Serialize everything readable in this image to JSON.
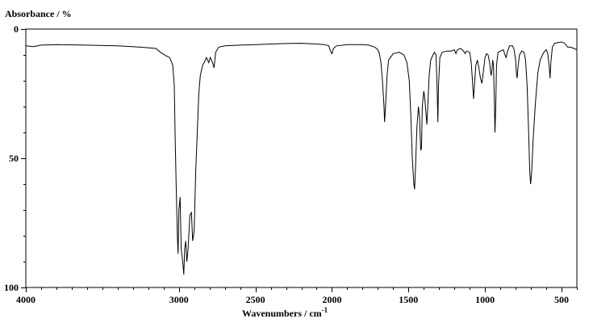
{
  "chart_data": {
    "type": "line",
    "title": "",
    "ylabel": "Absorbance / %",
    "xlabel": "Wavenumbers / cm",
    "xlabel_sup": "-1",
    "xlim": [
      4000,
      400
    ],
    "ylim": [
      0,
      100
    ],
    "y_inverted": true,
    "grid": false,
    "legend": "none",
    "x_tick_labels": [
      {
        "value": 4000,
        "label": "4000"
      },
      {
        "value": 3000,
        "label": "3000"
      },
      {
        "value": 2500,
        "label": "2500"
      },
      {
        "value": 2000,
        "label": "2000"
      },
      {
        "value": 1500,
        "label": "1500"
      },
      {
        "value": 1000,
        "label": "1000"
      },
      {
        "value": 500,
        "label": "500"
      }
    ],
    "y_tick_labels": [
      {
        "value": 0,
        "label": "0"
      },
      {
        "value": 50,
        "label": "50"
      },
      {
        "value": 100,
        "label": "100"
      }
    ],
    "x_minor_step": 100,
    "y_minor_step": 10,
    "series": [
      {
        "color": "#000000",
        "points": [
          [
            4000,
            6.5
          ],
          [
            3950,
            6.8
          ],
          [
            3900,
            6.2
          ],
          [
            3800,
            6.0
          ],
          [
            3600,
            6.2
          ],
          [
            3400,
            6.5
          ],
          [
            3250,
            7.0
          ],
          [
            3150,
            7.5
          ],
          [
            3120,
            9.0
          ],
          [
            3080,
            10.5
          ],
          [
            3060,
            11.0
          ],
          [
            3040,
            14
          ],
          [
            3030,
            22
          ],
          [
            3025,
            40
          ],
          [
            3018,
            60
          ],
          [
            3010,
            80
          ],
          [
            3005,
            87
          ],
          [
            3000,
            70
          ],
          [
            2992,
            65
          ],
          [
            2985,
            85
          ],
          [
            2975,
            90
          ],
          [
            2968,
            95
          ],
          [
            2962,
            85
          ],
          [
            2955,
            82
          ],
          [
            2948,
            90
          ],
          [
            2940,
            85
          ],
          [
            2928,
            72
          ],
          [
            2918,
            71
          ],
          [
            2910,
            82
          ],
          [
            2900,
            78
          ],
          [
            2890,
            55
          ],
          [
            2880,
            40
          ],
          [
            2870,
            25
          ],
          [
            2860,
            18
          ],
          [
            2845,
            14
          ],
          [
            2835,
            13
          ],
          [
            2820,
            11
          ],
          [
            2805,
            13
          ],
          [
            2795,
            11
          ],
          [
            2780,
            13
          ],
          [
            2770,
            15
          ],
          [
            2760,
            9
          ],
          [
            2740,
            7.0
          ],
          [
            2700,
            6.5
          ],
          [
            2600,
            6.2
          ],
          [
            2500,
            6.0
          ],
          [
            2400,
            5.8
          ],
          [
            2300,
            5.6
          ],
          [
            2200,
            5.5
          ],
          [
            2100,
            5.8
          ],
          [
            2050,
            6.0
          ],
          [
            2020,
            6.5
          ],
          [
            2010,
            8.5
          ],
          [
            2000,
            9.5
          ],
          [
            1990,
            7.5
          ],
          [
            1970,
            6.5
          ],
          [
            1900,
            6.0
          ],
          [
            1800,
            6.0
          ],
          [
            1760,
            6.2
          ],
          [
            1720,
            7.0
          ],
          [
            1700,
            8.0
          ],
          [
            1690,
            9.5
          ],
          [
            1680,
            13
          ],
          [
            1670,
            20
          ],
          [
            1660,
            30
          ],
          [
            1656,
            36
          ],
          [
            1650,
            30
          ],
          [
            1640,
            18
          ],
          [
            1630,
            12
          ],
          [
            1600,
            9.5
          ],
          [
            1560,
            9.0
          ],
          [
            1530,
            10
          ],
          [
            1510,
            13
          ],
          [
            1495,
            20
          ],
          [
            1485,
            33
          ],
          [
            1475,
            50
          ],
          [
            1465,
            60
          ],
          [
            1460,
            62
          ],
          [
            1455,
            55
          ],
          [
            1445,
            38
          ],
          [
            1435,
            30
          ],
          [
            1428,
            34
          ],
          [
            1420,
            47
          ],
          [
            1415,
            46
          ],
          [
            1410,
            30
          ],
          [
            1400,
            24
          ],
          [
            1395,
            26
          ],
          [
            1385,
            33
          ],
          [
            1380,
            37
          ],
          [
            1374,
            30
          ],
          [
            1365,
            18
          ],
          [
            1355,
            12
          ],
          [
            1340,
            10
          ],
          [
            1330,
            9.0
          ],
          [
            1320,
            10
          ],
          [
            1312,
            25
          ],
          [
            1308,
            36
          ],
          [
            1304,
            22
          ],
          [
            1295,
            11
          ],
          [
            1280,
            9.0
          ],
          [
            1250,
            8.5
          ],
          [
            1220,
            8.5
          ],
          [
            1200,
            8.0
          ],
          [
            1190,
            9.5
          ],
          [
            1180,
            8.0
          ],
          [
            1160,
            7.5
          ],
          [
            1140,
            8.5
          ],
          [
            1130,
            9.5
          ],
          [
            1120,
            8.5
          ],
          [
            1100,
            9.0
          ],
          [
            1090,
            13
          ],
          [
            1080,
            22
          ],
          [
            1075,
            27
          ],
          [
            1068,
            21
          ],
          [
            1060,
            14
          ],
          [
            1050,
            12
          ],
          [
            1040,
            15
          ],
          [
            1030,
            19
          ],
          [
            1020,
            21
          ],
          [
            1010,
            16
          ],
          [
            1000,
            11
          ],
          [
            990,
            9.5
          ],
          [
            980,
            10
          ],
          [
            970,
            13
          ],
          [
            965,
            16
          ],
          [
            960,
            18
          ],
          [
            955,
            16
          ],
          [
            950,
            12
          ],
          [
            945,
            14
          ],
          [
            940,
            25
          ],
          [
            935,
            40
          ],
          [
            930,
            30
          ],
          [
            925,
            14
          ],
          [
            915,
            9.0
          ],
          [
            900,
            8.5
          ],
          [
            880,
            8.0
          ],
          [
            870,
            10
          ],
          [
            862,
            11
          ],
          [
            855,
            9.0
          ],
          [
            840,
            6.5
          ],
          [
            820,
            6.5
          ],
          [
            810,
            8.0
          ],
          [
            800,
            12
          ],
          [
            795,
            17
          ],
          [
            790,
            19
          ],
          [
            785,
            15
          ],
          [
            775,
            10
          ],
          [
            760,
            8.5
          ],
          [
            745,
            9.0
          ],
          [
            735,
            12
          ],
          [
            725,
            22
          ],
          [
            715,
            40
          ],
          [
            708,
            55
          ],
          [
            702,
            60
          ],
          [
            695,
            55
          ],
          [
            685,
            42
          ],
          [
            670,
            28
          ],
          [
            655,
            17
          ],
          [
            640,
            12
          ],
          [
            625,
            10
          ],
          [
            610,
            8.5
          ],
          [
            600,
            8.0
          ],
          [
            590,
            9.5
          ],
          [
            580,
            15
          ],
          [
            575,
            19
          ],
          [
            570,
            13
          ],
          [
            560,
            7.0
          ],
          [
            545,
            5.5
          ],
          [
            520,
            5.2
          ],
          [
            500,
            5.0
          ],
          [
            480,
            5.5
          ],
          [
            460,
            7.0
          ],
          [
            440,
            7.0
          ],
          [
            420,
            7.5
          ],
          [
            400,
            8.0
          ]
        ]
      }
    ]
  }
}
